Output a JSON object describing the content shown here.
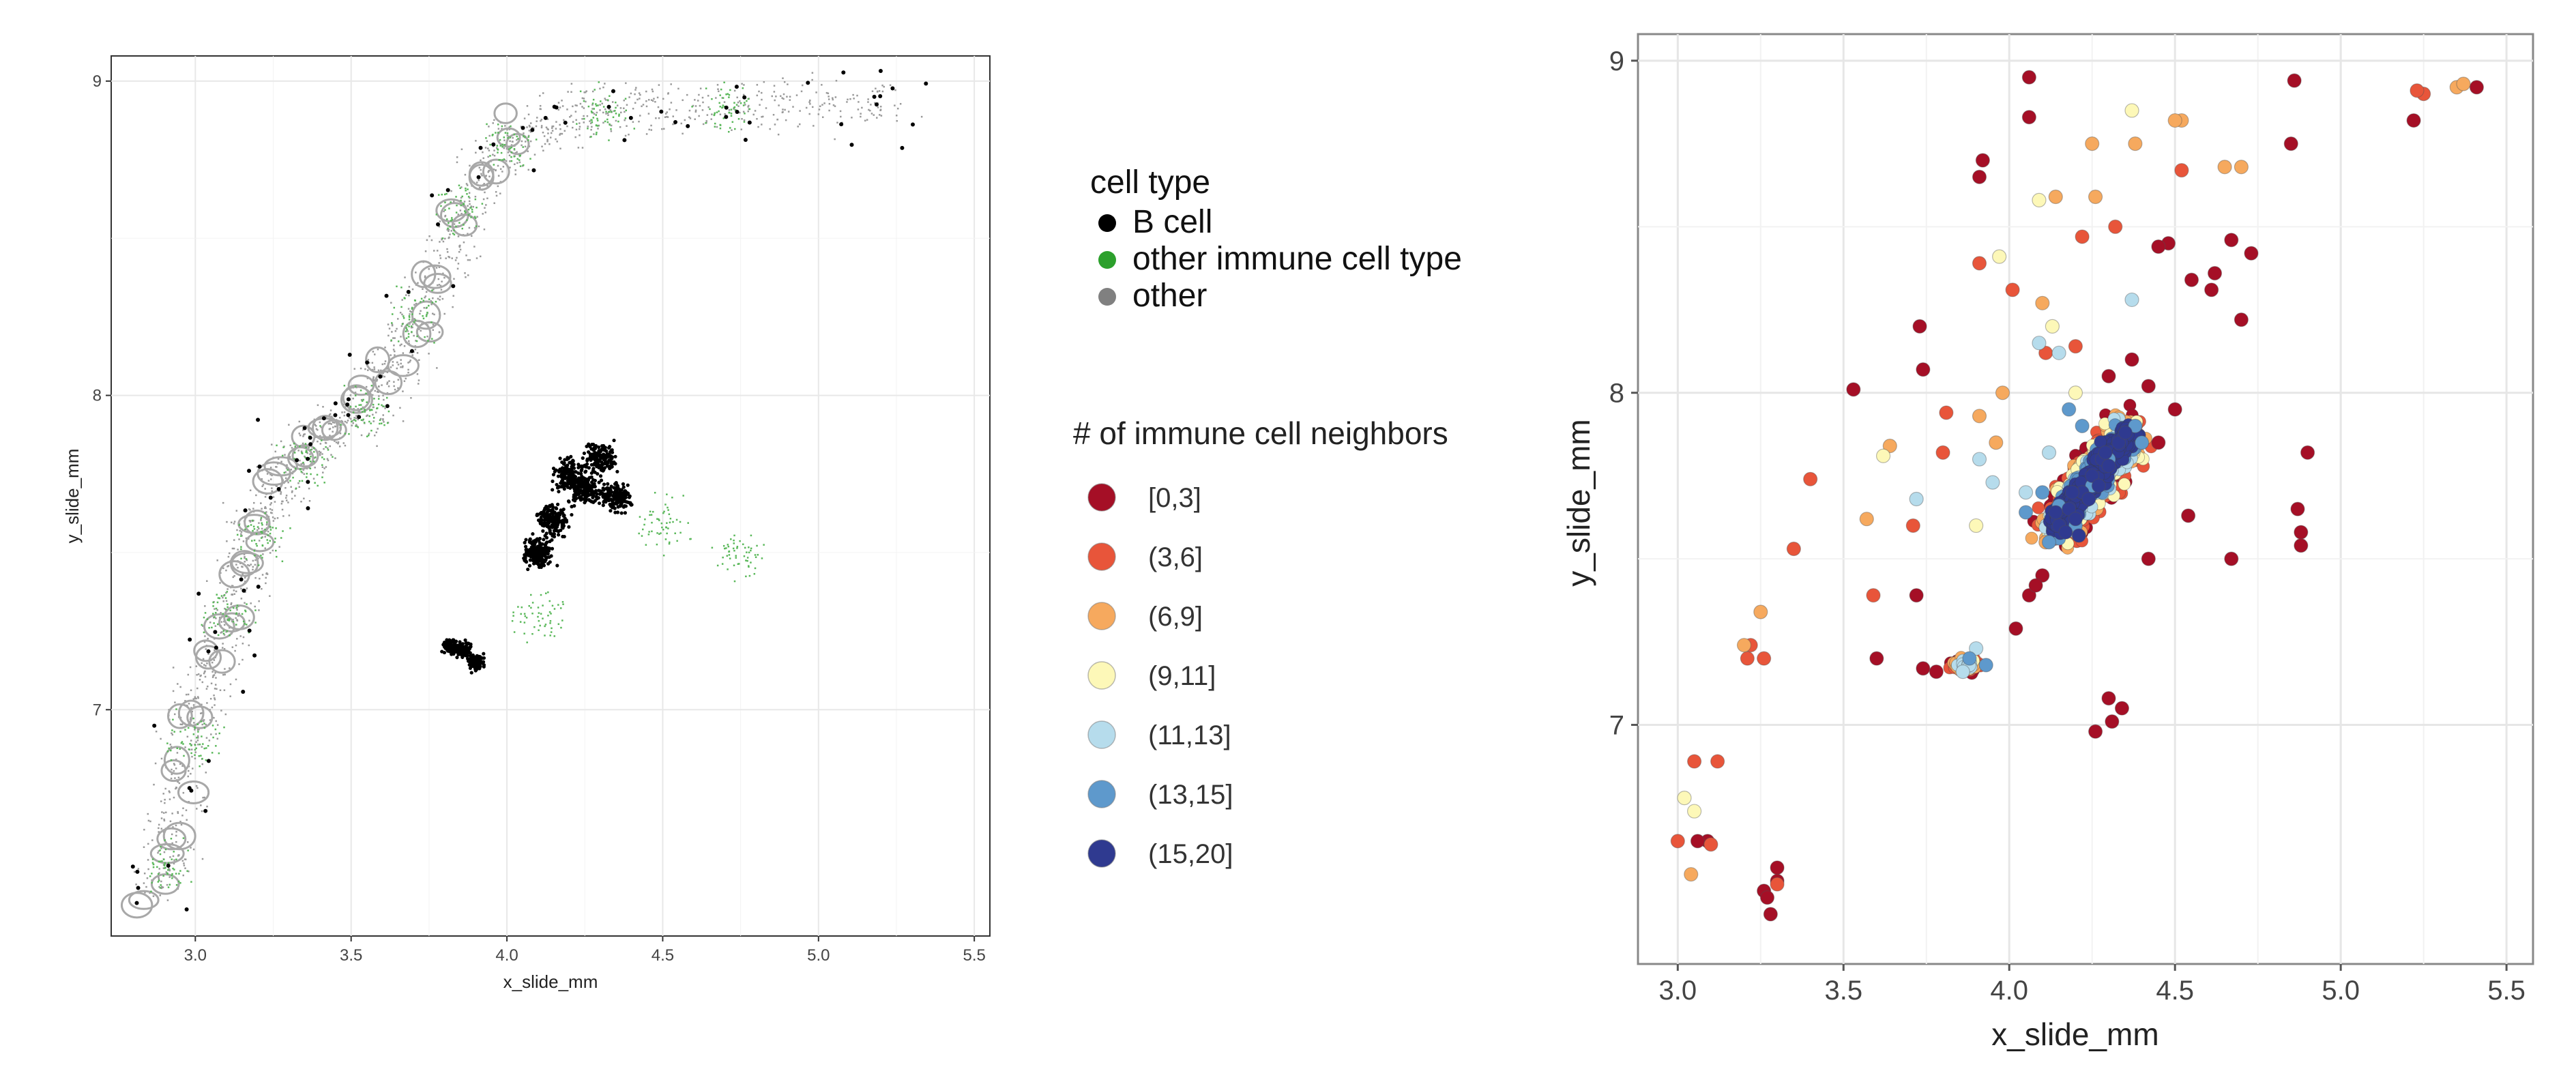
{
  "chart_data": [
    {
      "type": "scatter",
      "xlabel": "x_slide_mm",
      "ylabel": "y_slide_mm",
      "xlim": [
        2.73,
        5.55
      ],
      "ylim": [
        6.28,
        9.08
      ],
      "xticks": [
        "3.0",
        "3.5",
        "4.0",
        "4.5",
        "5.0",
        "5.5"
      ],
      "yticks": [
        "7",
        "8",
        "9"
      ],
      "grid": true,
      "legend": {
        "position": "right",
        "title": "cell type",
        "entries": [
          {
            "label": "B cell",
            "color": "#000000"
          },
          {
            "label": "other immune cell type",
            "color": "#2ca02c"
          },
          {
            "label": "other",
            "color": "#808080"
          }
        ]
      },
      "series": [
        {
          "name": "other",
          "color": "#9a9a9a",
          "region_points": [
            [
              2.88,
              6.42
            ],
            [
              2.92,
              6.6
            ],
            [
              2.96,
              6.8
            ],
            [
              3.0,
              7.0
            ],
            [
              3.05,
              7.15
            ],
            [
              3.1,
              7.3
            ],
            [
              3.15,
              7.45
            ],
            [
              3.2,
              7.6
            ],
            [
              3.27,
              7.72
            ],
            [
              3.35,
              7.82
            ],
            [
              3.45,
              7.9
            ],
            [
              3.55,
              7.98
            ],
            [
              3.62,
              8.08
            ],
            [
              3.7,
              8.2
            ],
            [
              3.77,
              8.38
            ],
            [
              3.85,
              8.55
            ],
            [
              3.93,
              8.72
            ],
            [
              4.02,
              8.82
            ],
            [
              4.15,
              8.88
            ],
            [
              4.3,
              8.91
            ],
            [
              4.5,
              8.92
            ],
            [
              4.75,
              8.93
            ],
            [
              5.0,
              8.93
            ],
            [
              5.25,
              8.93
            ]
          ]
        },
        {
          "name": "other immune cell type",
          "color": "#5ab85a",
          "region_points": [
            [
              2.9,
              6.5
            ],
            [
              3.0,
              6.9
            ],
            [
              3.1,
              7.3
            ],
            [
              3.2,
              7.55
            ],
            [
              3.35,
              7.8
            ],
            [
              3.55,
              7.95
            ],
            [
              3.7,
              8.25
            ],
            [
              3.85,
              8.6
            ],
            [
              4.0,
              8.8
            ],
            [
              4.3,
              8.9
            ],
            [
              4.7,
              8.92
            ],
            [
              4.1,
              7.3
            ],
            [
              4.5,
              7.6
            ],
            [
              4.75,
              7.5
            ]
          ]
        },
        {
          "name": "B cell",
          "color": "#000000",
          "cluster_points": [
            [
              4.2,
              7.75
            ],
            [
              4.25,
              7.7
            ],
            [
              4.15,
              7.6
            ],
            [
              4.3,
              7.8
            ],
            [
              4.1,
              7.5
            ],
            [
              4.35,
              7.68
            ],
            [
              3.86,
              7.19
            ],
            [
              3.9,
              7.15
            ],
            [
              3.82,
              7.2
            ]
          ]
        }
      ]
    },
    {
      "type": "scatter",
      "xlabel": "x_slide_mm",
      "ylabel": "y_slide_mm",
      "xlim": [
        2.88,
        5.58
      ],
      "ylim": [
        6.28,
        9.08
      ],
      "xticks": [
        "3.0",
        "3.5",
        "4.0",
        "4.5",
        "5.0",
        "5.5"
      ],
      "yticks": [
        "7",
        "8",
        "9"
      ],
      "grid": true,
      "legend": {
        "position": "right",
        "title": "# of immune cell neighbors",
        "entries": [
          {
            "label": "[0,3]",
            "color": "#a50f26"
          },
          {
            "label": "(3,6]",
            "color": "#e8553a"
          },
          {
            "label": "(6,9]",
            "color": "#f6a95e"
          },
          {
            "label": "(9,11]",
            "color": "#fdf8b8"
          },
          {
            "label": "(11,13]",
            "color": "#b6dcec"
          },
          {
            "label": "(13,15]",
            "color": "#5e99cc"
          },
          {
            "label": "(15,20]",
            "color": "#2f3a90"
          }
        ]
      },
      "series": [
        {
          "name": "[0,3]",
          "points": [
            [
              4.06,
              8.95
            ],
            [
              4.06,
              8.83
            ],
            [
              3.92,
              8.7
            ],
            [
              3.91,
              8.65
            ],
            [
              4.86,
              8.94
            ],
            [
              4.85,
              8.75
            ],
            [
              5.22,
              8.82
            ],
            [
              5.41,
              8.92
            ],
            [
              3.73,
              8.2
            ],
            [
              3.74,
              8.07
            ],
            [
              3.53,
              8.01
            ],
            [
              4.67,
              8.46
            ],
            [
              4.73,
              8.42
            ],
            [
              4.62,
              8.36
            ],
            [
              4.55,
              8.34
            ],
            [
              4.61,
              8.31
            ],
            [
              4.7,
              8.22
            ],
            [
              4.48,
              8.45
            ],
            [
              4.45,
              8.44
            ],
            [
              3.72,
              7.39
            ],
            [
              3.6,
              7.2
            ],
            [
              3.74,
              7.17
            ],
            [
              3.78,
              7.16
            ],
            [
              4.06,
              7.39
            ],
            [
              4.02,
              7.29
            ],
            [
              4.42,
              7.5
            ],
            [
              4.54,
              7.63
            ],
            [
              4.67,
              7.5
            ],
            [
              4.88,
              7.58
            ],
            [
              4.88,
              7.54
            ],
            [
              4.9,
              7.82
            ],
            [
              4.87,
              7.65
            ],
            [
              4.3,
              7.08
            ],
            [
              4.34,
              7.05
            ],
            [
              4.31,
              7.01
            ],
            [
              4.26,
              6.98
            ],
            [
              3.28,
              6.43
            ],
            [
              3.26,
              6.5
            ],
            [
              3.3,
              6.57
            ],
            [
              3.09,
              6.65
            ],
            [
              3.06,
              6.65
            ],
            [
              3.27,
              6.48
            ],
            [
              3.3,
              6.53
            ],
            [
              4.1,
              7.45
            ],
            [
              4.08,
              7.42
            ],
            [
              4.5,
              7.95
            ],
            [
              4.45,
              7.85
            ],
            [
              4.3,
              8.05
            ],
            [
              4.37,
              8.1
            ],
            [
              4.42,
              8.02
            ]
          ]
        },
        {
          "name": "(3,6]",
          "points": [
            [
              3.0,
              6.65
            ],
            [
              3.12,
              6.89
            ],
            [
              3.05,
              6.89
            ],
            [
              3.1,
              6.64
            ],
            [
              3.3,
              6.52
            ],
            [
              3.22,
              7.24
            ],
            [
              3.21,
              7.2
            ],
            [
              3.26,
              7.2
            ],
            [
              3.59,
              7.39
            ],
            [
              3.71,
              7.6
            ],
            [
              3.81,
              7.94
            ],
            [
              3.8,
              7.82
            ],
            [
              3.91,
              8.39
            ],
            [
              4.01,
              8.31
            ],
            [
              4.22,
              8.47
            ],
            [
              4.32,
              8.5
            ],
            [
              4.52,
              8.67
            ],
            [
              5.25,
              8.9
            ],
            [
              5.23,
              8.91
            ],
            [
              4.11,
              8.12
            ],
            [
              4.2,
              8.14
            ],
            [
              3.4,
              7.74
            ],
            [
              3.35,
              7.53
            ]
          ]
        },
        {
          "name": "(6,9]",
          "points": [
            [
              3.04,
              6.55
            ],
            [
              3.2,
              7.24
            ],
            [
              3.25,
              7.34
            ],
            [
              3.57,
              7.62
            ],
            [
              3.64,
              7.84
            ],
            [
              3.91,
              7.93
            ],
            [
              3.98,
              8.0
            ],
            [
              4.1,
              8.27
            ],
            [
              4.26,
              8.59
            ],
            [
              4.14,
              8.59
            ],
            [
              4.25,
              8.75
            ],
            [
              4.38,
              8.75
            ],
            [
              4.52,
              8.82
            ],
            [
              4.5,
              8.82
            ],
            [
              4.7,
              8.68
            ],
            [
              4.65,
              8.68
            ],
            [
              5.35,
              8.92
            ],
            [
              5.37,
              8.93
            ],
            [
              4.11,
              7.55
            ],
            [
              3.96,
              7.85
            ]
          ]
        },
        {
          "name": "(9,11]",
          "points": [
            [
              3.02,
              6.78
            ],
            [
              3.05,
              6.74
            ],
            [
              3.62,
              7.81
            ],
            [
              3.97,
              8.41
            ],
            [
              4.09,
              8.58
            ],
            [
              4.37,
              8.85
            ],
            [
              4.13,
              8.2
            ],
            [
              4.2,
              8.0
            ],
            [
              3.9,
              7.6
            ]
          ]
        },
        {
          "name": "(11,13]",
          "points": [
            [
              3.72,
              7.68
            ],
            [
              3.91,
              7.8
            ],
            [
              3.95,
              7.73
            ],
            [
              4.12,
              7.82
            ],
            [
              4.15,
              8.12
            ],
            [
              4.09,
              8.15
            ],
            [
              4.37,
              8.28
            ],
            [
              3.9,
              7.23
            ],
            [
              3.86,
              7.16
            ],
            [
              4.05,
              7.7
            ]
          ]
        },
        {
          "name": "(13,15]",
          "points": [
            [
              4.1,
              7.7
            ],
            [
              4.15,
              7.66
            ],
            [
              4.2,
              7.6
            ],
            [
              4.25,
              7.72
            ],
            [
              4.3,
              7.8
            ],
            [
              4.38,
              7.9
            ],
            [
              4.4,
              7.85
            ],
            [
              4.05,
              7.64
            ],
            [
              4.12,
              7.55
            ],
            [
              4.22,
              7.9
            ],
            [
              4.18,
              7.95
            ],
            [
              3.88,
              7.2
            ],
            [
              3.93,
              7.18
            ]
          ]
        },
        {
          "name": "(15,20]",
          "points": [
            [
              4.15,
              7.6
            ],
            [
              4.18,
              7.65
            ],
            [
              4.22,
              7.7
            ],
            [
              4.25,
              7.75
            ],
            [
              4.28,
              7.8
            ],
            [
              4.3,
              7.78
            ],
            [
              4.33,
              7.85
            ],
            [
              4.2,
              7.62
            ],
            [
              4.17,
              7.58
            ],
            [
              4.24,
              7.68
            ],
            [
              4.27,
              7.72
            ],
            [
              4.35,
              7.88
            ],
            [
              4.19,
              7.7
            ],
            [
              4.21,
              7.57
            ],
            [
              4.29,
              7.82
            ],
            [
              4.14,
              7.64
            ]
          ]
        }
      ]
    }
  ]
}
